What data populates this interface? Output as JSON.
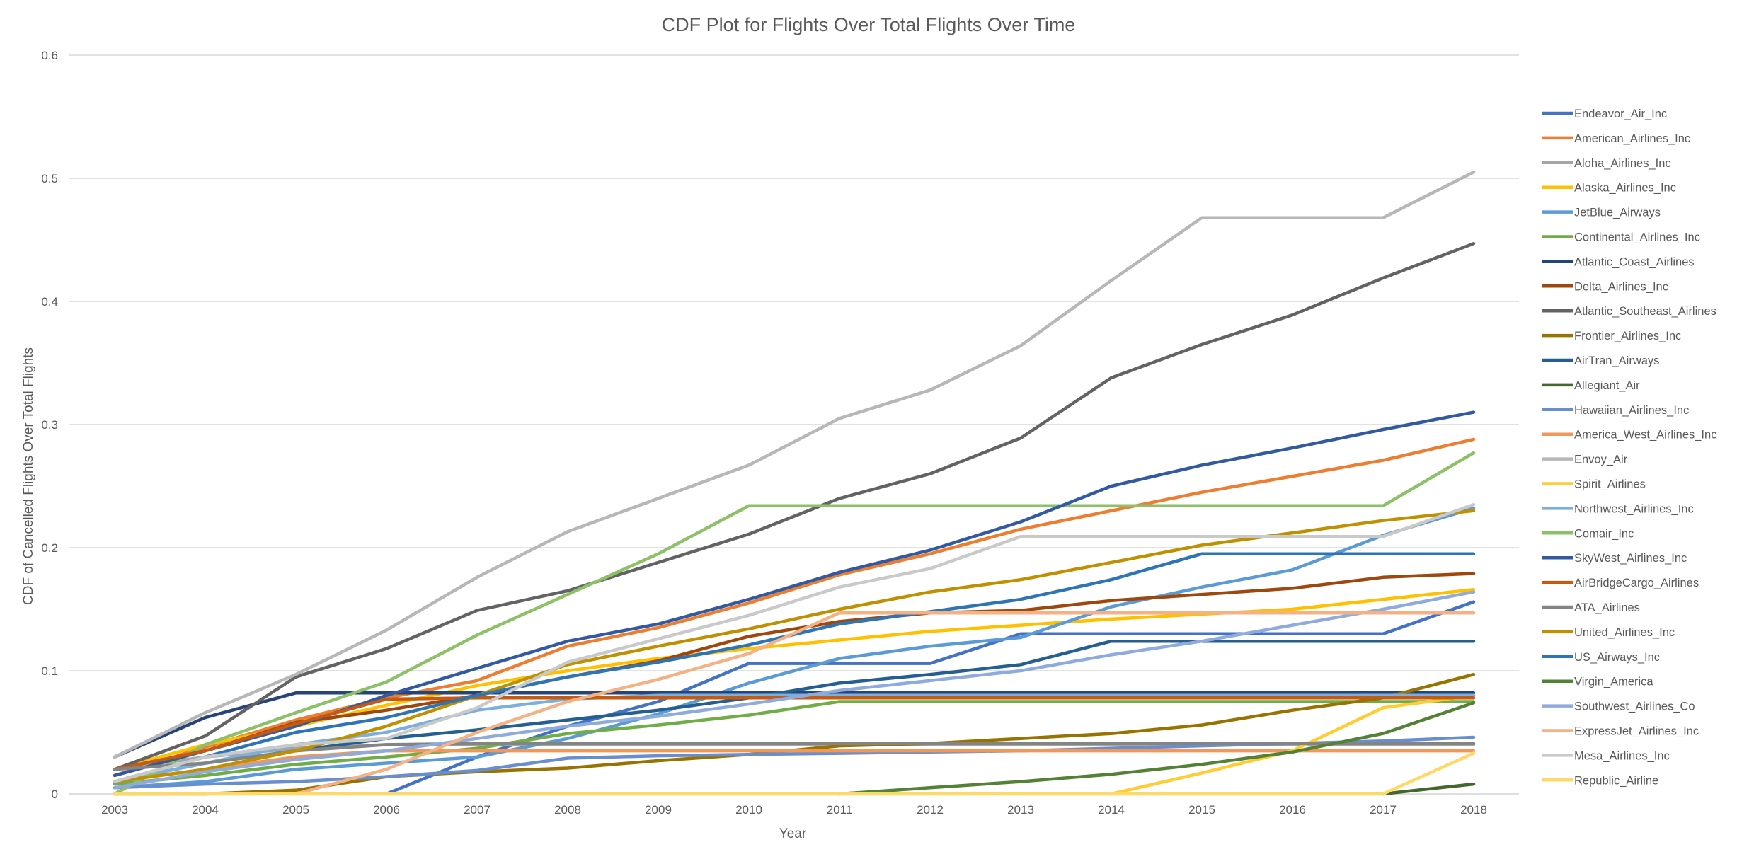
{
  "chart_data": {
    "type": "line",
    "title": "CDF Plot for Flights Over Total Flights Over Time",
    "xlabel": "Year",
    "ylabel": "CDF of Cancelled Flights Over Total Flights",
    "categories": [
      "2003",
      "2004",
      "2005",
      "2006",
      "2007",
      "2008",
      "2009",
      "2010",
      "2011",
      "2012",
      "2013",
      "2014",
      "2015",
      "2016",
      "2017",
      "2018"
    ],
    "ylim": [
      0,
      0.6
    ],
    "yticks": [
      0,
      0.1,
      0.2,
      0.3,
      0.4,
      0.5,
      0.6
    ],
    "ytick_labels": [
      "0",
      "0.1",
      "0.2",
      "0.3",
      "0.4",
      "0.5",
      "0.6"
    ],
    "grid": true,
    "legend_position": "right",
    "series": [
      {
        "name": "Endeavor_Air_Inc",
        "color": "#4472C4",
        "values": [
          null,
          null,
          null,
          0,
          0.03,
          0.055,
          0.075,
          0.106,
          0.106,
          0.106,
          0.13,
          0.13,
          0.13,
          0.13,
          0.13,
          0.156
        ]
      },
      {
        "name": "American_Airlines_Inc",
        "color": "#ED7D31",
        "values": [
          0.015,
          0.038,
          0.06,
          0.078,
          0.092,
          0.12,
          0.135,
          0.155,
          0.178,
          0.195,
          0.215,
          0.23,
          0.245,
          0.258,
          0.271,
          0.288
        ]
      },
      {
        "name": "Aloha_Airlines_Inc",
        "color": "#A5A5A5",
        "values": [
          0.02,
          0.03,
          0.037,
          0.04,
          0.04,
          0.04,
          0.04,
          0.04,
          0.04,
          0.04,
          0.04,
          0.04,
          0.04,
          0.04,
          0.04,
          0.04
        ]
      },
      {
        "name": "Alaska_Airlines_Inc",
        "color": "#FFC000",
        "values": [
          0.02,
          0.04,
          0.055,
          0.072,
          0.088,
          0.1,
          0.11,
          0.118,
          0.125,
          0.132,
          0.137,
          0.142,
          0.146,
          0.15,
          0.158,
          0.166
        ]
      },
      {
        "name": "JetBlue_Airways",
        "color": "#5B9BD5",
        "values": [
          0.005,
          0.01,
          0.02,
          0.025,
          0.03,
          0.045,
          0.065,
          0.09,
          0.11,
          0.12,
          0.127,
          0.152,
          0.168,
          0.182,
          0.21,
          0.232
        ]
      },
      {
        "name": "Continental_Airlines_Inc",
        "color": "#70AD47",
        "values": [
          0.008,
          0.015,
          0.024,
          0.03,
          0.037,
          0.049,
          0.056,
          0.064,
          0.075,
          0.075,
          0.075,
          0.075,
          0.075,
          0.075,
          0.075,
          0.075
        ]
      },
      {
        "name": "Atlantic_Coast_Airlines",
        "color": "#264478",
        "values": [
          0.03,
          0.062,
          0.082,
          0.082,
          0.082,
          0.082,
          0.082,
          0.082,
          0.082,
          0.082,
          0.082,
          0.082,
          0.082,
          0.082,
          0.082,
          0.082
        ]
      },
      {
        "name": "Delta_Airlines_Inc",
        "color": "#9E480E",
        "values": [
          0.02,
          0.035,
          0.058,
          0.068,
          0.08,
          0.095,
          0.108,
          0.128,
          0.14,
          0.147,
          0.149,
          0.157,
          0.162,
          0.167,
          0.176,
          0.179
        ]
      },
      {
        "name": "Atlantic_Southeast_Airlines",
        "color": "#636363",
        "values": [
          0.02,
          0.047,
          0.095,
          0.118,
          0.149,
          0.165,
          0.188,
          0.211,
          0.24,
          0.26,
          0.289,
          0.338,
          0.365,
          0.389,
          0.419,
          0.447
        ]
      },
      {
        "name": "Frontier_Airlines_Inc",
        "color": "#997300",
        "values": [
          0,
          0,
          0.003,
          0.014,
          0.018,
          0.021,
          0.027,
          0.032,
          0.039,
          0.041,
          0.045,
          0.049,
          0.056,
          0.068,
          0.078,
          0.097
        ]
      },
      {
        "name": "AirTran_Airways",
        "color": "#255E91",
        "values": [
          0.01,
          0.025,
          0.035,
          0.045,
          0.052,
          0.06,
          0.068,
          0.078,
          0.09,
          0.097,
          0.105,
          0.124,
          0.124,
          0.124,
          0.124,
          0.124
        ]
      },
      {
        "name": "Allegiant_Air",
        "color": "#43682B",
        "values": [
          null,
          null,
          null,
          null,
          null,
          null,
          null,
          null,
          null,
          null,
          null,
          null,
          null,
          null,
          0,
          0.008
        ]
      },
      {
        "name": "Hawaiian_Airlines_Inc",
        "color": "#698ED0",
        "values": [
          0.005,
          0.008,
          0.01,
          0.014,
          0.019,
          0.029,
          0.031,
          0.032,
          0.033,
          0.034,
          0.035,
          0.037,
          0.039,
          0.041,
          0.043,
          0.046
        ]
      },
      {
        "name": "America_West_Airlines_Inc",
        "color": "#F1975A",
        "values": [
          0.01,
          0.02,
          0.03,
          0.035,
          0.035,
          0.035,
          0.035,
          0.035,
          0.035,
          0.035,
          0.035,
          0.035,
          0.035,
          0.035,
          0.035,
          0.035
        ]
      },
      {
        "name": "Envoy_Air",
        "color": "#B7B7B7",
        "values": [
          0.03,
          0.066,
          0.097,
          0.133,
          0.176,
          0.213,
          0.24,
          0.267,
          0.305,
          0.328,
          0.364,
          0.417,
          0.468,
          0.468,
          0.468,
          0.505
        ]
      },
      {
        "name": "Spirit_Airlines",
        "color": "#FFCD33",
        "values": [
          null,
          null,
          null,
          null,
          null,
          null,
          null,
          null,
          null,
          null,
          null,
          0,
          0.017,
          0.035,
          0.07,
          0.08
        ]
      },
      {
        "name": "Northwest_Airlines_Inc",
        "color": "#7CAFDD",
        "values": [
          0.01,
          0.025,
          0.04,
          0.05,
          0.068,
          0.077,
          0.08,
          0.08,
          0.08,
          0.08,
          0.08,
          0.08,
          0.08,
          0.08,
          0.08,
          0.08
        ]
      },
      {
        "name": "Comair_Inc",
        "color": "#8CC168",
        "values": [
          0,
          0.04,
          0.066,
          0.091,
          0.129,
          0.162,
          0.195,
          0.234,
          0.234,
          0.234,
          0.234,
          0.234,
          0.234,
          0.234,
          0.234,
          0.277
        ]
      },
      {
        "name": "SkyWest_Airlines_Inc",
        "color": "#335AA1",
        "values": [
          0.015,
          0.035,
          0.055,
          0.08,
          0.102,
          0.124,
          0.138,
          0.158,
          0.18,
          0.198,
          0.221,
          0.25,
          0.267,
          0.281,
          0.296,
          0.31
        ]
      },
      {
        "name": "AirBridgeCargo_Airlines",
        "color": "#C55A11",
        "values": [
          0.02,
          0.035,
          0.057,
          0.077,
          0.078,
          0.078,
          0.078,
          0.078,
          0.078,
          0.078,
          0.078,
          0.078,
          0.078,
          0.078,
          0.078,
          0.078
        ]
      },
      {
        "name": "ATA_Airlines",
        "color": "#848484",
        "values": [
          0.02,
          0.025,
          0.035,
          0.04,
          0.041,
          0.041,
          0.041,
          0.041,
          0.041,
          0.041,
          0.041,
          0.041,
          0.041,
          0.041,
          0.041,
          0.041
        ]
      },
      {
        "name": "United_Airlines_Inc",
        "color": "#BF9000",
        "values": [
          0.01,
          0.02,
          0.035,
          0.055,
          0.08,
          0.105,
          0.12,
          0.134,
          0.15,
          0.164,
          0.174,
          0.188,
          0.202,
          0.212,
          0.222,
          0.23
        ]
      },
      {
        "name": "US_Airways_Inc",
        "color": "#2E75B6",
        "values": [
          0.01,
          0.03,
          0.05,
          0.062,
          0.08,
          0.095,
          0.107,
          0.121,
          0.138,
          0.148,
          0.158,
          0.174,
          0.195,
          0.195,
          0.195,
          0.195
        ]
      },
      {
        "name": "Virgin_America",
        "color": "#548235",
        "values": [
          null,
          null,
          null,
          null,
          null,
          null,
          null,
          null,
          0,
          0.005,
          0.01,
          0.016,
          0.024,
          0.034,
          0.049,
          0.074
        ]
      },
      {
        "name": "Southwest_Airlines_Co",
        "color": "#8FAADC",
        "values": [
          0.005,
          0.018,
          0.028,
          0.035,
          0.045,
          0.055,
          0.063,
          0.073,
          0.084,
          0.092,
          0.1,
          0.113,
          0.124,
          0.137,
          0.15,
          0.164
        ]
      },
      {
        "name": "ExpressJet_Airlines_Inc",
        "color": "#F4B183",
        "values": [
          null,
          null,
          0,
          0.02,
          0.05,
          0.075,
          0.093,
          0.114,
          0.147,
          0.147,
          0.147,
          0.147,
          0.147,
          0.147,
          0.147,
          0.147
        ]
      },
      {
        "name": "Mesa_Airlines_Inc",
        "color": "#C9C9C9",
        "values": [
          0.01,
          0.03,
          0.04,
          0.045,
          0.07,
          0.107,
          0.126,
          0.145,
          0.168,
          0.183,
          0.209,
          0.209,
          0.209,
          0.209,
          0.209,
          0.235
        ]
      },
      {
        "name": "Republic_Airline",
        "color": "#FFD966",
        "values": [
          0,
          0,
          0,
          0,
          0,
          0,
          0,
          0,
          0,
          0,
          0,
          0,
          0,
          0,
          0,
          0.033
        ]
      }
    ]
  }
}
